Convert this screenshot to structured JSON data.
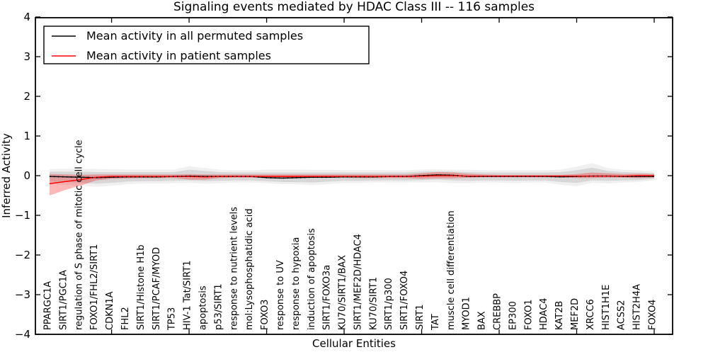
{
  "figure": {
    "title": "Signaling events mediated by HDAC Class III -- 116 samples",
    "xlabel": "Cellular Entities",
    "ylabel": "Inferred Activity"
  },
  "legend": {
    "position": "upper left",
    "items": [
      {
        "label": "Mean activity in all permuted samples",
        "color": "#000000"
      },
      {
        "label": "Mean activity in patient samples",
        "color": "#ff0000"
      }
    ]
  },
  "chart_data": {
    "type": "line",
    "title": "Signaling events mediated by HDAC Class III -- 116 samples",
    "xlabel": "Cellular Entities",
    "ylabel": "Inferred Activity",
    "ylim": [
      -4,
      4
    ],
    "yticks": [
      4,
      3,
      2,
      1,
      0,
      -1,
      -2,
      -3,
      -4
    ],
    "grid": false,
    "legend_position": "upper left",
    "x_tick_label_rotation": 90,
    "categories": [
      "PPARGC1A",
      "SIRT1/PGC1A",
      "regulation of S phase of mitotic cell cycle",
      "FOXO1/FHL2/SIRT1",
      "CDKN1A",
      "FHL2",
      "SIRT1/Histone H1b",
      "SIRT1/PCAF/MYOD",
      "TP53",
      "HIV-1 Tat/SIRT1",
      "apoptosis",
      "p53/SIRT1",
      "response to nutrient levels",
      "mol:Lysophosphatidic acid",
      "FOXO3",
      "response to UV",
      "response to hypoxia",
      "induction of apoptosis",
      "SIRT1/FOXO3a",
      "KU70/SIRT1/BAX",
      "SIRT1/MEF2D/HDAC4",
      "KU70/SIRT1",
      "SIRT1/p300",
      "SIRT1/FOXO4",
      "SIRT1",
      "TAT",
      "muscle cell differentiation",
      "MYOD1",
      "BAX",
      "CREBBP",
      "EP300",
      "FOXO1",
      "HDAC4",
      "KAT2B",
      "MEF2D",
      "XRCC6",
      "HIST1H1E",
      "ACSS2",
      "HIST2H4A",
      "FOXO4"
    ],
    "series": [
      {
        "name": "Mean activity in all permuted samples",
        "color": "#000000",
        "line_style": "solid with dotted overlay",
        "values": [
          -0.02,
          -0.03,
          -0.04,
          -0.05,
          -0.04,
          -0.03,
          -0.03,
          -0.03,
          -0.02,
          -0.01,
          -0.02,
          -0.02,
          -0.02,
          -0.02,
          -0.05,
          -0.06,
          -0.05,
          -0.04,
          -0.04,
          -0.03,
          -0.03,
          -0.03,
          -0.02,
          -0.02,
          0.0,
          0.02,
          0.01,
          -0.02,
          -0.02,
          -0.02,
          -0.02,
          -0.02,
          -0.02,
          -0.03,
          -0.02,
          -0.01,
          -0.01,
          -0.02,
          -0.02,
          -0.02
        ],
        "band_high": [
          0.1,
          0.1,
          0.1,
          0.09,
          0.09,
          0.09,
          0.09,
          0.09,
          0.09,
          0.15,
          0.12,
          0.09,
          0.08,
          0.08,
          0.08,
          0.08,
          0.08,
          0.08,
          0.08,
          0.08,
          0.08,
          0.08,
          0.08,
          0.08,
          0.1,
          0.11,
          0.1,
          0.09,
          0.08,
          0.08,
          0.08,
          0.08,
          0.08,
          0.09,
          0.14,
          0.2,
          0.12,
          0.09,
          0.08,
          0.06
        ],
        "band_low": [
          -0.15,
          -0.16,
          -0.18,
          -0.2,
          -0.18,
          -0.15,
          -0.14,
          -0.14,
          -0.13,
          -0.12,
          -0.14,
          -0.13,
          -0.12,
          -0.12,
          -0.14,
          -0.16,
          -0.16,
          -0.17,
          -0.15,
          -0.13,
          -0.13,
          -0.12,
          -0.12,
          -0.12,
          -0.11,
          -0.1,
          -0.12,
          -0.13,
          -0.12,
          -0.12,
          -0.13,
          -0.12,
          -0.12,
          -0.16,
          -0.18,
          -0.12,
          -0.13,
          -0.12,
          -0.11,
          -0.08
        ],
        "band_color": "rgba(0,0,0,0.10)"
      },
      {
        "name": "Mean activity in patient samples",
        "color": "#ff0000",
        "line_style": "solid",
        "values": [
          -0.2,
          -0.15,
          -0.1,
          -0.04,
          -0.02,
          -0.02,
          -0.02,
          -0.02,
          -0.02,
          -0.02,
          -0.03,
          -0.02,
          -0.02,
          -0.02,
          -0.02,
          -0.02,
          -0.02,
          -0.02,
          -0.02,
          -0.02,
          -0.02,
          -0.02,
          -0.02,
          -0.02,
          -0.01,
          0.0,
          0.0,
          -0.01,
          -0.01,
          -0.01,
          -0.01,
          -0.01,
          -0.01,
          -0.01,
          -0.01,
          -0.01,
          -0.01,
          -0.01,
          0.0,
          0.0
        ],
        "band_high": [
          0.04,
          0.03,
          0.02,
          0.03,
          0.03,
          0.03,
          0.03,
          0.03,
          0.03,
          0.04,
          0.03,
          0.03,
          0.03,
          0.03,
          0.03,
          0.03,
          0.03,
          0.03,
          0.03,
          0.03,
          0.03,
          0.03,
          0.03,
          0.03,
          0.06,
          0.09,
          0.08,
          0.05,
          0.03,
          0.02,
          0.02,
          0.02,
          0.02,
          0.02,
          0.04,
          0.08,
          0.06,
          0.04,
          0.05,
          0.04
        ],
        "band_low": [
          -0.5,
          -0.36,
          -0.25,
          -0.12,
          -0.08,
          -0.07,
          -0.06,
          -0.06,
          -0.06,
          -0.1,
          -0.1,
          -0.06,
          -0.05,
          -0.05,
          -0.05,
          -0.05,
          -0.05,
          -0.05,
          -0.05,
          -0.05,
          -0.06,
          -0.06,
          -0.06,
          -0.06,
          -0.08,
          -0.07,
          -0.07,
          -0.05,
          -0.04,
          -0.04,
          -0.04,
          -0.04,
          -0.04,
          -0.04,
          -0.06,
          -0.06,
          -0.05,
          -0.05,
          -0.06,
          -0.05
        ],
        "band_color": "rgba(255,0,0,0.28)"
      }
    ]
  }
}
